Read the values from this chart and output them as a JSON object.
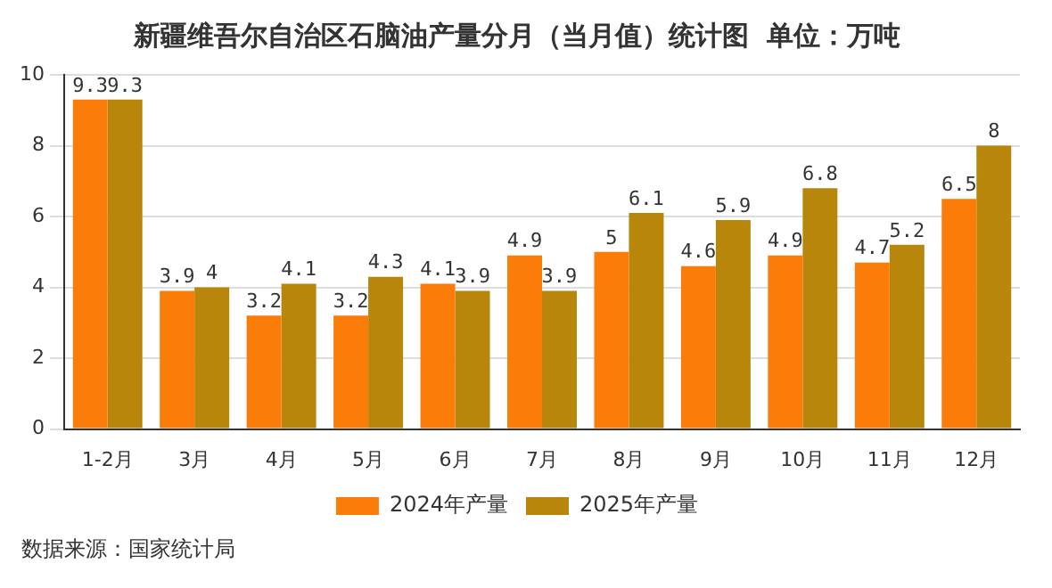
{
  "chart_data": {
    "type": "bar",
    "title": "新疆维吾尔自治区石脑油产量分月（当月值）统计图  单位：万吨",
    "categories": [
      "1-2月",
      "3月",
      "4月",
      "5月",
      "6月",
      "7月",
      "8月",
      "9月",
      "10月",
      "11月",
      "12月"
    ],
    "series": [
      {
        "name": "2024年产量",
        "color": "#fa7d0a",
        "values": [
          9.3,
          3.9,
          3.2,
          3.2,
          4.1,
          4.9,
          5,
          4.6,
          4.9,
          4.7,
          6.5
        ]
      },
      {
        "name": "2025年产量",
        "color": "#b8860b",
        "values": [
          9.3,
          4,
          4.1,
          4.3,
          3.9,
          3.9,
          6.1,
          5.9,
          6.8,
          5.2,
          8
        ]
      }
    ],
    "ylim": [
      0,
      10
    ],
    "yticks": [
      0,
      2,
      4,
      6,
      8,
      10
    ],
    "grid": "y",
    "legend": "bottom",
    "data_labels": true,
    "annotations": [
      "数据来源：国家统计局"
    ]
  }
}
